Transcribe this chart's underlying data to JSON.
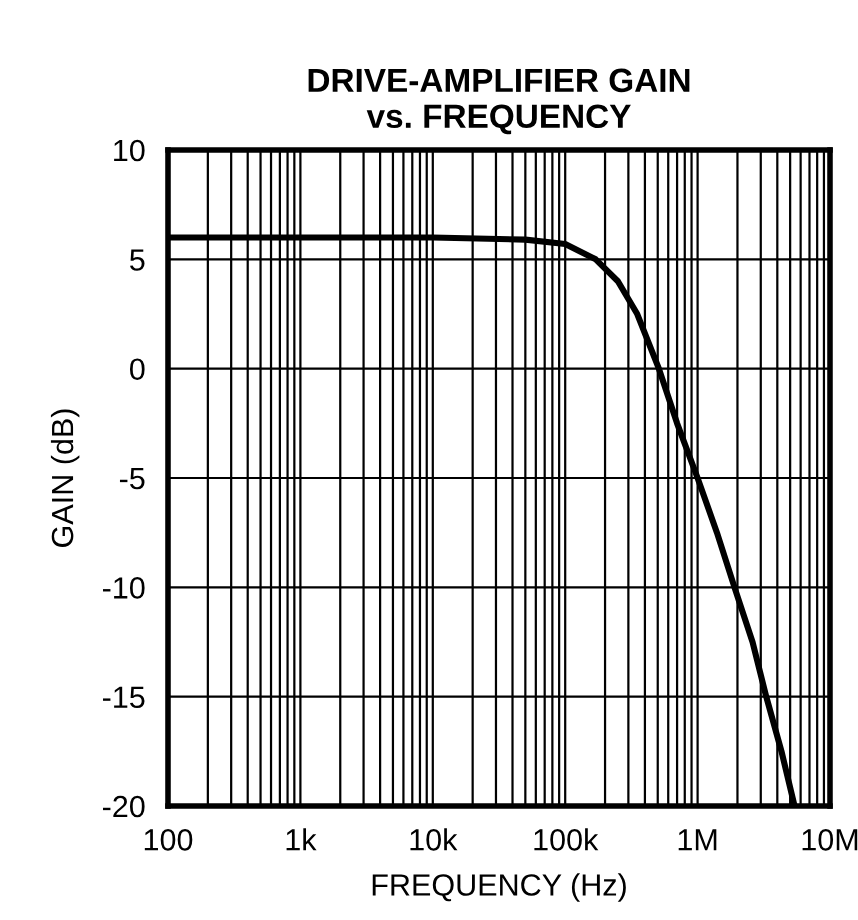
{
  "chart_data": {
    "type": "line",
    "title": "DRIVE-AMPLIFIER GAIN\nvs. FREQUENCY",
    "xlabel": "FREQUENCY (Hz)",
    "ylabel": "GAIN (dB)",
    "x": [
      100,
      1000,
      10000,
      50000,
      100000,
      170000,
      250000,
      350000,
      510000,
      700000,
      1000000,
      1400000,
      1900000,
      2600000,
      3300000,
      4300000,
      5400000
    ],
    "series": [
      {
        "color": "#000000",
        "values": [
          6,
          6,
          6,
          5.9,
          5.7,
          5,
          4,
          2.5,
          0,
          -2.5,
          -5,
          -7.5,
          -10,
          -12.5,
          -15,
          -17.5,
          -20
        ]
      }
    ],
    "log": "x",
    "xlim": [
      100,
      10000000
    ],
    "ylim": [
      -20,
      10
    ],
    "xticks": [
      100,
      {
        "value": 1000,
        "label": "1k"
      },
      {
        "value": 10000,
        "label": "10k"
      },
      {
        "value": 100000,
        "label": "100k"
      },
      {
        "value": 1000000,
        "label": "1M"
      },
      {
        "value": 10000000,
        "label": "10M"
      }
    ],
    "yticks": [
      -20,
      -15,
      -10,
      -5,
      0,
      5,
      10
    ],
    "grid": true,
    "marker": "none",
    "line_style": "solid",
    "legend": false
  }
}
